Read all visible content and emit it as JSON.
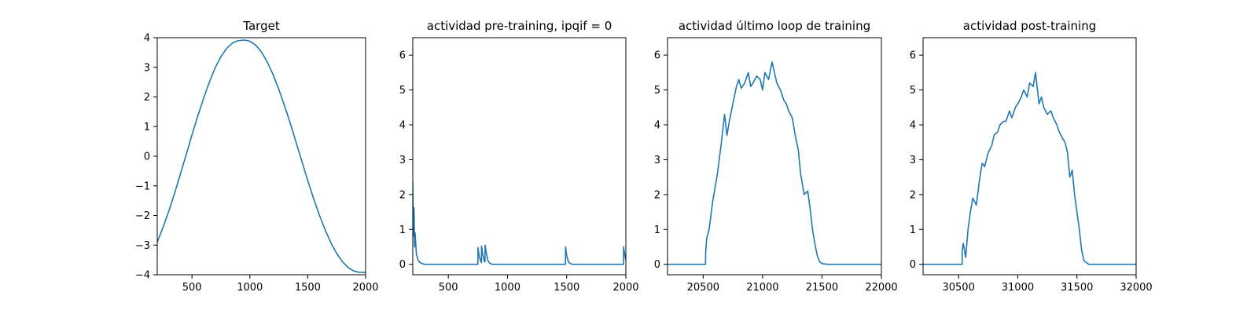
{
  "figure": {
    "background": "#ffffff",
    "line_color": "#1f77b4"
  },
  "chart_data": [
    {
      "type": "line",
      "title": "Target",
      "xlim": [
        200,
        2000
      ],
      "ylim": [
        -4,
        4
      ],
      "xticks": [
        500,
        1000,
        1500,
        2000
      ],
      "yticks": [
        -4,
        -3,
        -2,
        -1,
        0,
        1,
        2,
        3,
        4
      ],
      "xtick_labels": [
        "500",
        "1000",
        "1500",
        "2000"
      ],
      "ytick_labels": [
        "−4",
        "−3",
        "−2",
        "−1",
        "0",
        "1",
        "2",
        "3",
        "4"
      ],
      "series": [
        {
          "color": "#1f77b4",
          "x": [
            200,
            250,
            300,
            350,
            400,
            450,
            500,
            550,
            600,
            650,
            700,
            750,
            800,
            850,
            900,
            950,
            970,
            1000,
            1050,
            1100,
            1150,
            1200,
            1250,
            1300,
            1350,
            1400,
            1450,
            1500,
            1550,
            1600,
            1650,
            1700,
            1750,
            1800,
            1850,
            1900,
            1950,
            2000
          ],
          "values": [
            -2.9,
            -2.4,
            -1.85,
            -1.25,
            -0.6,
            0.05,
            0.72,
            1.35,
            1.95,
            2.5,
            2.98,
            3.36,
            3.64,
            3.82,
            3.9,
            3.92,
            3.91,
            3.88,
            3.75,
            3.52,
            3.18,
            2.76,
            2.26,
            1.7,
            1.1,
            0.46,
            -0.18,
            -0.82,
            -1.42,
            -1.98,
            -2.48,
            -2.92,
            -3.28,
            -3.56,
            -3.76,
            -3.88,
            -3.92,
            -3.92
          ]
        }
      ]
    },
    {
      "type": "line",
      "title": "actividad pre-training, ipqif = 0",
      "xlim": [
        200,
        2000
      ],
      "ylim": [
        -0.3,
        6.5
      ],
      "xticks": [
        500,
        1000,
        1500,
        2000
      ],
      "yticks": [
        0,
        1,
        2,
        3,
        4,
        5,
        6
      ],
      "xtick_labels": [
        "500",
        "1000",
        "1500",
        "2000"
      ],
      "ytick_labels": [
        "0",
        "1",
        "2",
        "3",
        "4",
        "5",
        "6"
      ],
      "series": [
        {
          "color": "#1f77b4",
          "x": [
            200,
            205,
            210,
            212,
            215,
            220,
            230,
            245,
            260,
            280,
            300,
            750,
            751,
            760,
            775,
            780,
            781,
            790,
            805,
            810,
            811,
            820,
            835,
            850,
            870,
            900,
            1490,
            1491,
            1500,
            1515,
            1530,
            1550,
            1980,
            1981,
            1990,
            2000
          ],
          "values": [
            2.35,
            0.8,
            1.62,
            1.3,
            0.5,
            0.9,
            0.3,
            0.12,
            0.05,
            0.02,
            0.0,
            0.0,
            0.48,
            0.25,
            0.08,
            0.05,
            0.52,
            0.3,
            0.08,
            0.07,
            0.55,
            0.35,
            0.1,
            0.03,
            0.0,
            0.0,
            0.0,
            0.5,
            0.25,
            0.07,
            0.02,
            0.0,
            0.0,
            0.5,
            0.3,
            0.12
          ]
        }
      ]
    },
    {
      "type": "line",
      "title": "actividad último loop de training",
      "xlim": [
        20200,
        22000
      ],
      "ylim": [
        -0.3,
        6.5
      ],
      "xticks": [
        20500,
        21000,
        21500,
        22000
      ],
      "yticks": [
        0,
        1,
        2,
        3,
        4,
        5,
        6
      ],
      "xtick_labels": [
        "20500",
        "21000",
        "21500",
        "22000"
      ],
      "ytick_labels": [
        "0",
        "1",
        "2",
        "3",
        "4",
        "5",
        "6"
      ],
      "series": [
        {
          "color": "#1f77b4",
          "x": [
            20200,
            20520,
            20521,
            20530,
            20550,
            20580,
            20600,
            20620,
            20650,
            20680,
            20700,
            20720,
            20750,
            20780,
            20800,
            20820,
            20850,
            20880,
            20900,
            20920,
            20950,
            20980,
            21000,
            21020,
            21050,
            21080,
            21100,
            21120,
            21150,
            21180,
            21200,
            21220,
            21250,
            21280,
            21300,
            21320,
            21350,
            21380,
            21400,
            21420,
            21440,
            21460,
            21480,
            21500,
            21550,
            22000
          ],
          "values": [
            0.0,
            0.0,
            0.35,
            0.75,
            1.0,
            1.8,
            2.2,
            2.6,
            3.4,
            4.3,
            3.7,
            4.1,
            4.6,
            5.1,
            5.3,
            5.05,
            5.2,
            5.5,
            5.1,
            5.2,
            5.4,
            5.3,
            5.0,
            5.5,
            5.3,
            5.8,
            5.5,
            5.2,
            5.0,
            4.7,
            4.6,
            4.4,
            4.2,
            3.6,
            3.3,
            2.6,
            2.0,
            2.1,
            1.6,
            1.0,
            0.6,
            0.25,
            0.08,
            0.02,
            0.0,
            0.0
          ]
        }
      ]
    },
    {
      "type": "line",
      "title": "actividad post-training",
      "xlim": [
        30200,
        32000
      ],
      "ylim": [
        -0.3,
        6.5
      ],
      "xticks": [
        30500,
        31000,
        31500,
        32000
      ],
      "yticks": [
        0,
        1,
        2,
        3,
        4,
        5,
        6
      ],
      "xtick_labels": [
        "30500",
        "31000",
        "31500",
        "32000"
      ],
      "ytick_labels": [
        "0",
        "1",
        "2",
        "3",
        "4",
        "5",
        "6"
      ],
      "series": [
        {
          "color": "#1f77b4",
          "x": [
            30200,
            30530,
            30531,
            30540,
            30560,
            30580,
            30600,
            30620,
            30650,
            30680,
            30700,
            30720,
            30750,
            30780,
            30800,
            30830,
            30850,
            30880,
            30900,
            30930,
            30950,
            30980,
            31000,
            31030,
            31050,
            31080,
            31100,
            31130,
            31150,
            31180,
            31200,
            31220,
            31250,
            31280,
            31300,
            31330,
            31350,
            31380,
            31400,
            31420,
            31440,
            31460,
            31480,
            31500,
            31520,
            31540,
            31560,
            31600,
            32000
          ],
          "values": [
            0.0,
            0.0,
            0.4,
            0.6,
            0.2,
            1.0,
            1.5,
            1.9,
            1.7,
            2.5,
            2.9,
            2.8,
            3.2,
            3.4,
            3.7,
            3.8,
            4.0,
            4.1,
            4.1,
            4.4,
            4.2,
            4.5,
            4.6,
            4.8,
            5.0,
            4.8,
            5.2,
            5.1,
            5.5,
            4.6,
            4.8,
            4.5,
            4.3,
            4.4,
            4.2,
            4.0,
            3.8,
            3.6,
            3.5,
            3.2,
            2.5,
            2.7,
            2.0,
            1.5,
            1.0,
            0.4,
            0.1,
            0.0,
            0.0
          ]
        }
      ]
    }
  ]
}
